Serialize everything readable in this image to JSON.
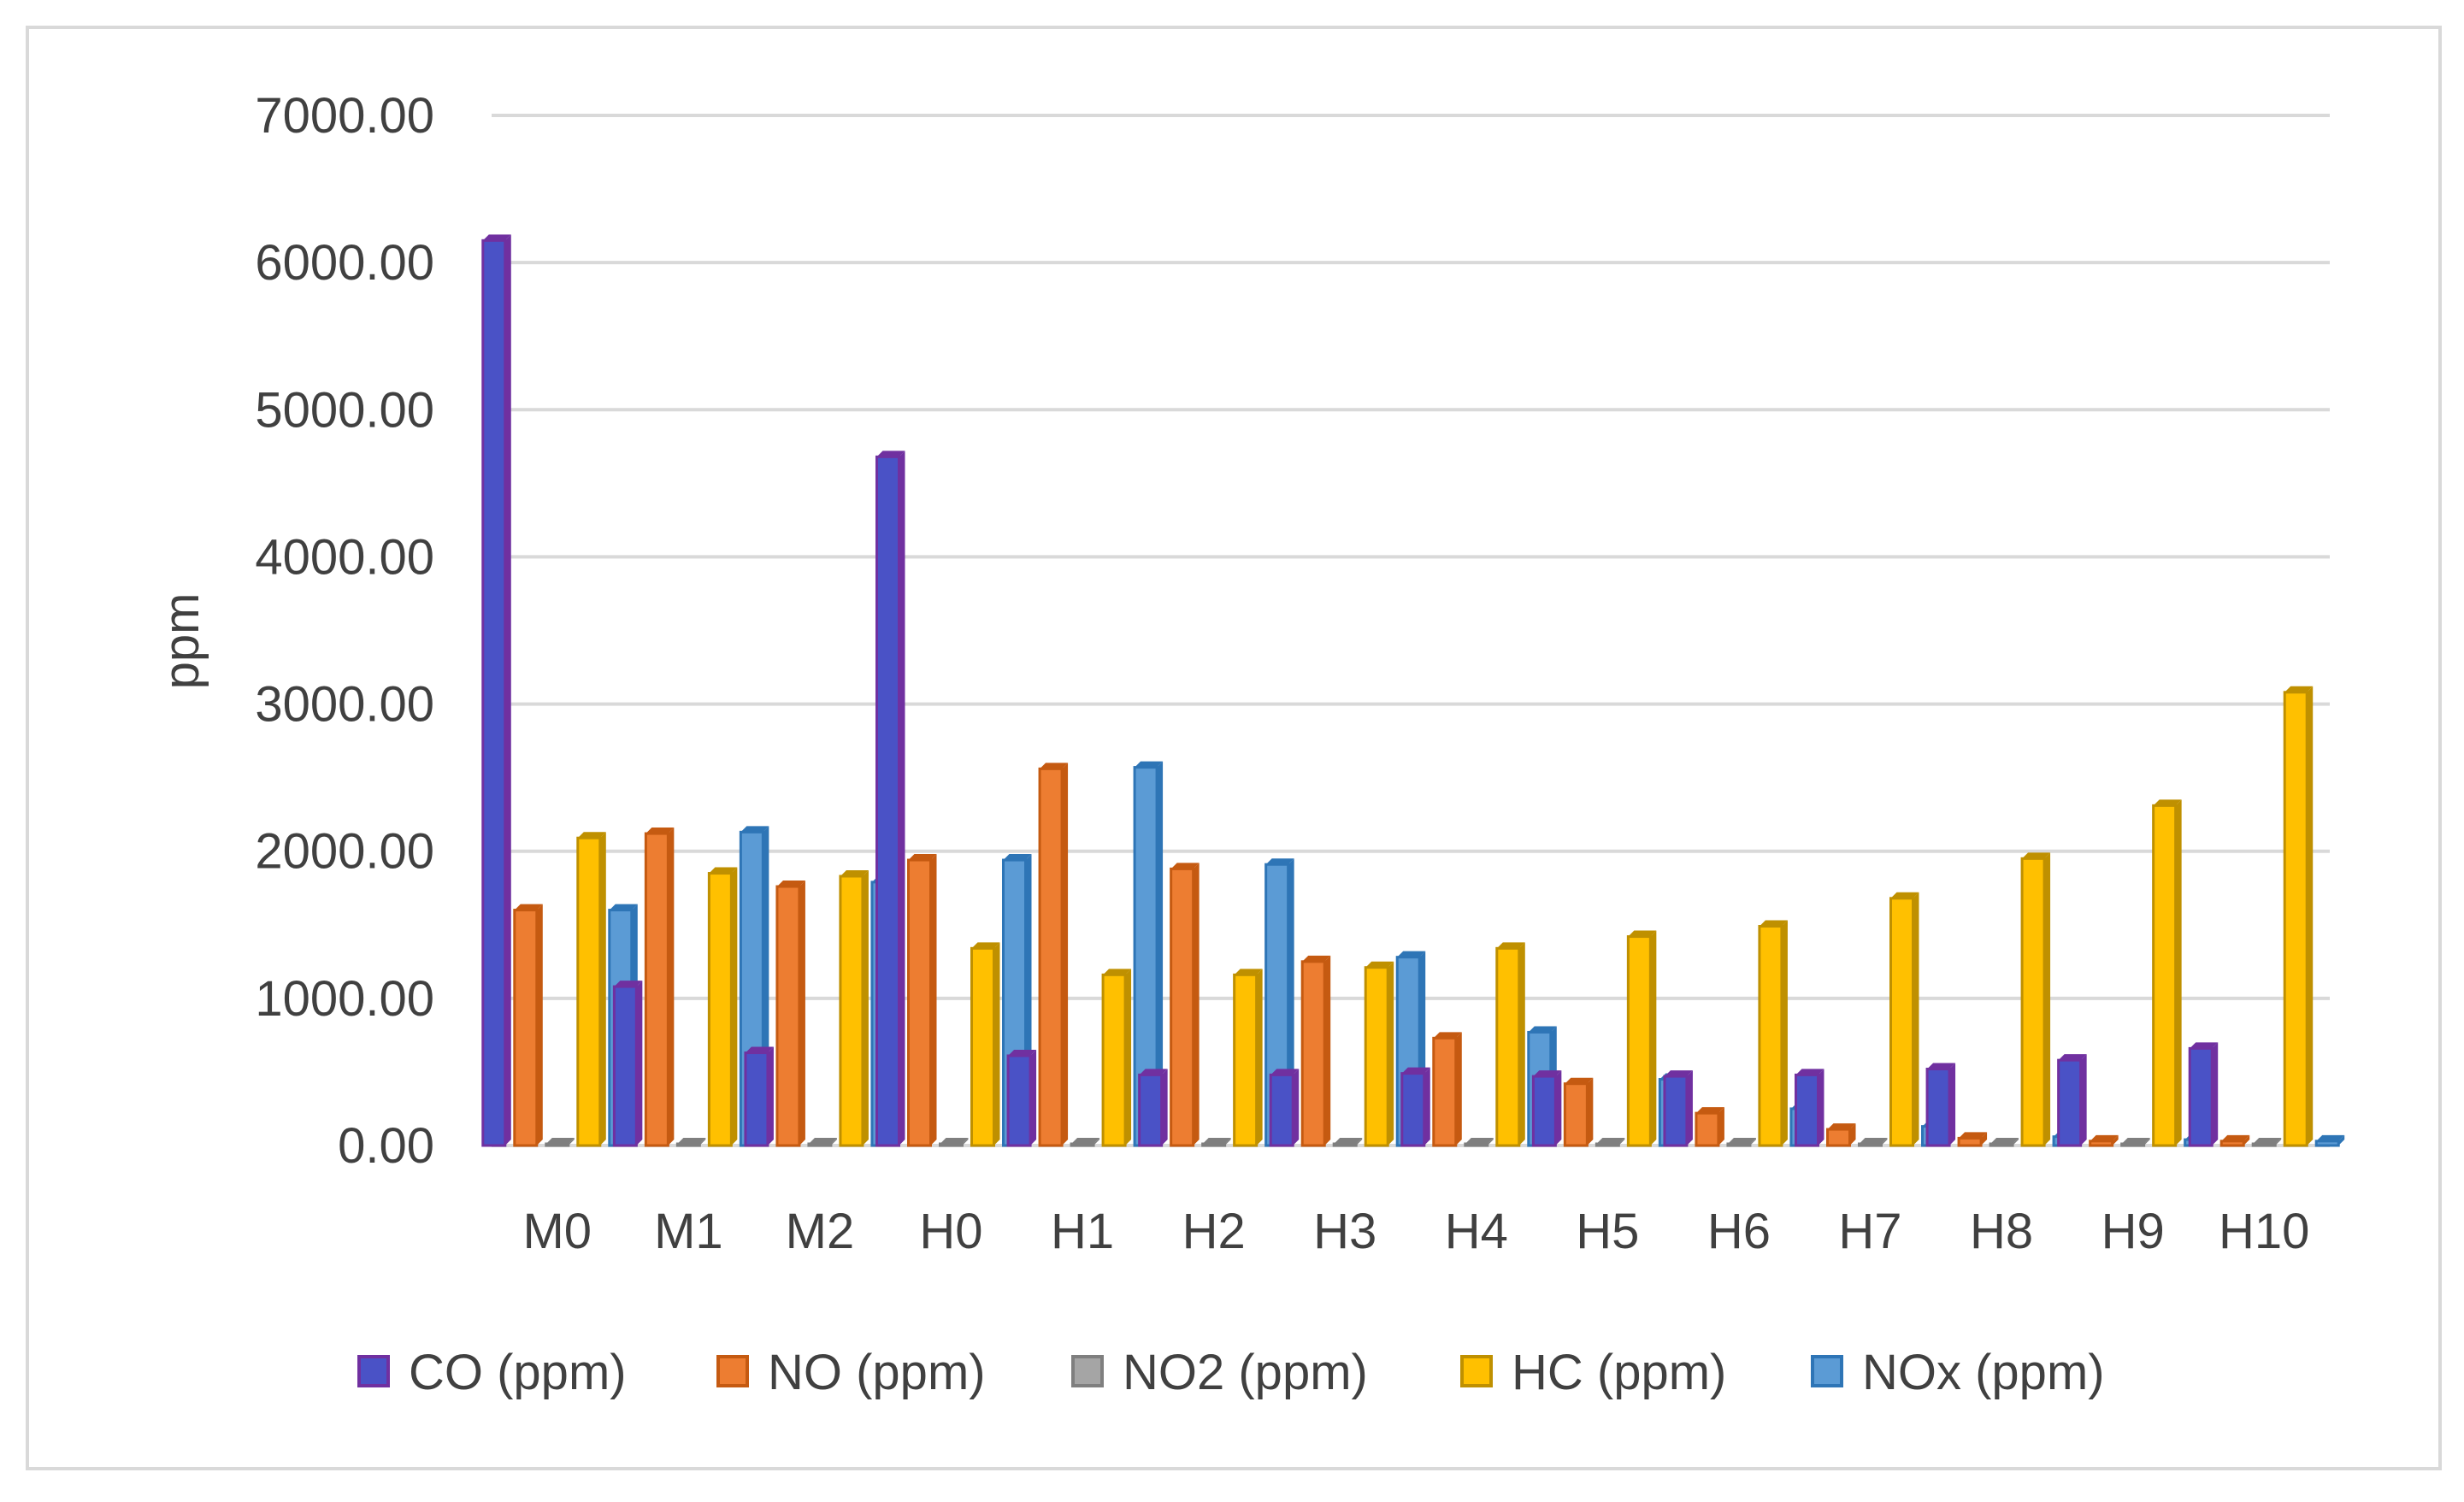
{
  "chart_data": {
    "type": "bar",
    "title": "",
    "xlabel": "",
    "ylabel": "ppm",
    "ylim": [
      0,
      7000
    ],
    "yticks": [
      0,
      1000,
      2000,
      3000,
      4000,
      5000,
      6000,
      7000
    ],
    "ytick_labels": [
      "0.00",
      "1000.00",
      "2000.00",
      "3000.00",
      "4000.00",
      "5000.00",
      "6000.00",
      "7000.00"
    ],
    "grid": true,
    "legend_position": "bottom",
    "categories": [
      "M0",
      "M1",
      "M2",
      "H0",
      "H1",
      "H2",
      "H3",
      "H4",
      "H5",
      "H6",
      "H7",
      "H8",
      "H9",
      "H10"
    ],
    "series": [
      {
        "name": "CO (ppm)",
        "color": "#4a52c6",
        "edge": "#7030a0",
        "values": [
          6150,
          1080,
          630,
          4680,
          610,
          480,
          480,
          490,
          470,
          470,
          480,
          520,
          580,
          660
        ]
      },
      {
        "name": "NO (ppm)",
        "color": "#ed7d31",
        "edge": "#c55a11",
        "values": [
          1600,
          2120,
          1760,
          1940,
          2560,
          1880,
          1250,
          730,
          420,
          220,
          110,
          50,
          30,
          30
        ]
      },
      {
        "name": "NO2 (ppm)",
        "color": "#a5a5a5",
        "edge": "#7f7f7f",
        "values": [
          5,
          5,
          5,
          5,
          5,
          5,
          5,
          5,
          5,
          5,
          5,
          5,
          5,
          5
        ]
      },
      {
        "name": "HC (ppm)",
        "color": "#ffc000",
        "edge": "#bf9000",
        "values": [
          2090,
          1850,
          1830,
          1340,
          1160,
          1160,
          1210,
          1340,
          1420,
          1490,
          1680,
          1950,
          2310,
          3080
        ]
      },
      {
        "name": "NOx (ppm)",
        "color": "#5b9bd5",
        "edge": "#2e75b6",
        "values": [
          1600,
          2130,
          1790,
          1940,
          2570,
          1910,
          1280,
          770,
          450,
          250,
          130,
          60,
          40,
          30
        ]
      }
    ]
  }
}
